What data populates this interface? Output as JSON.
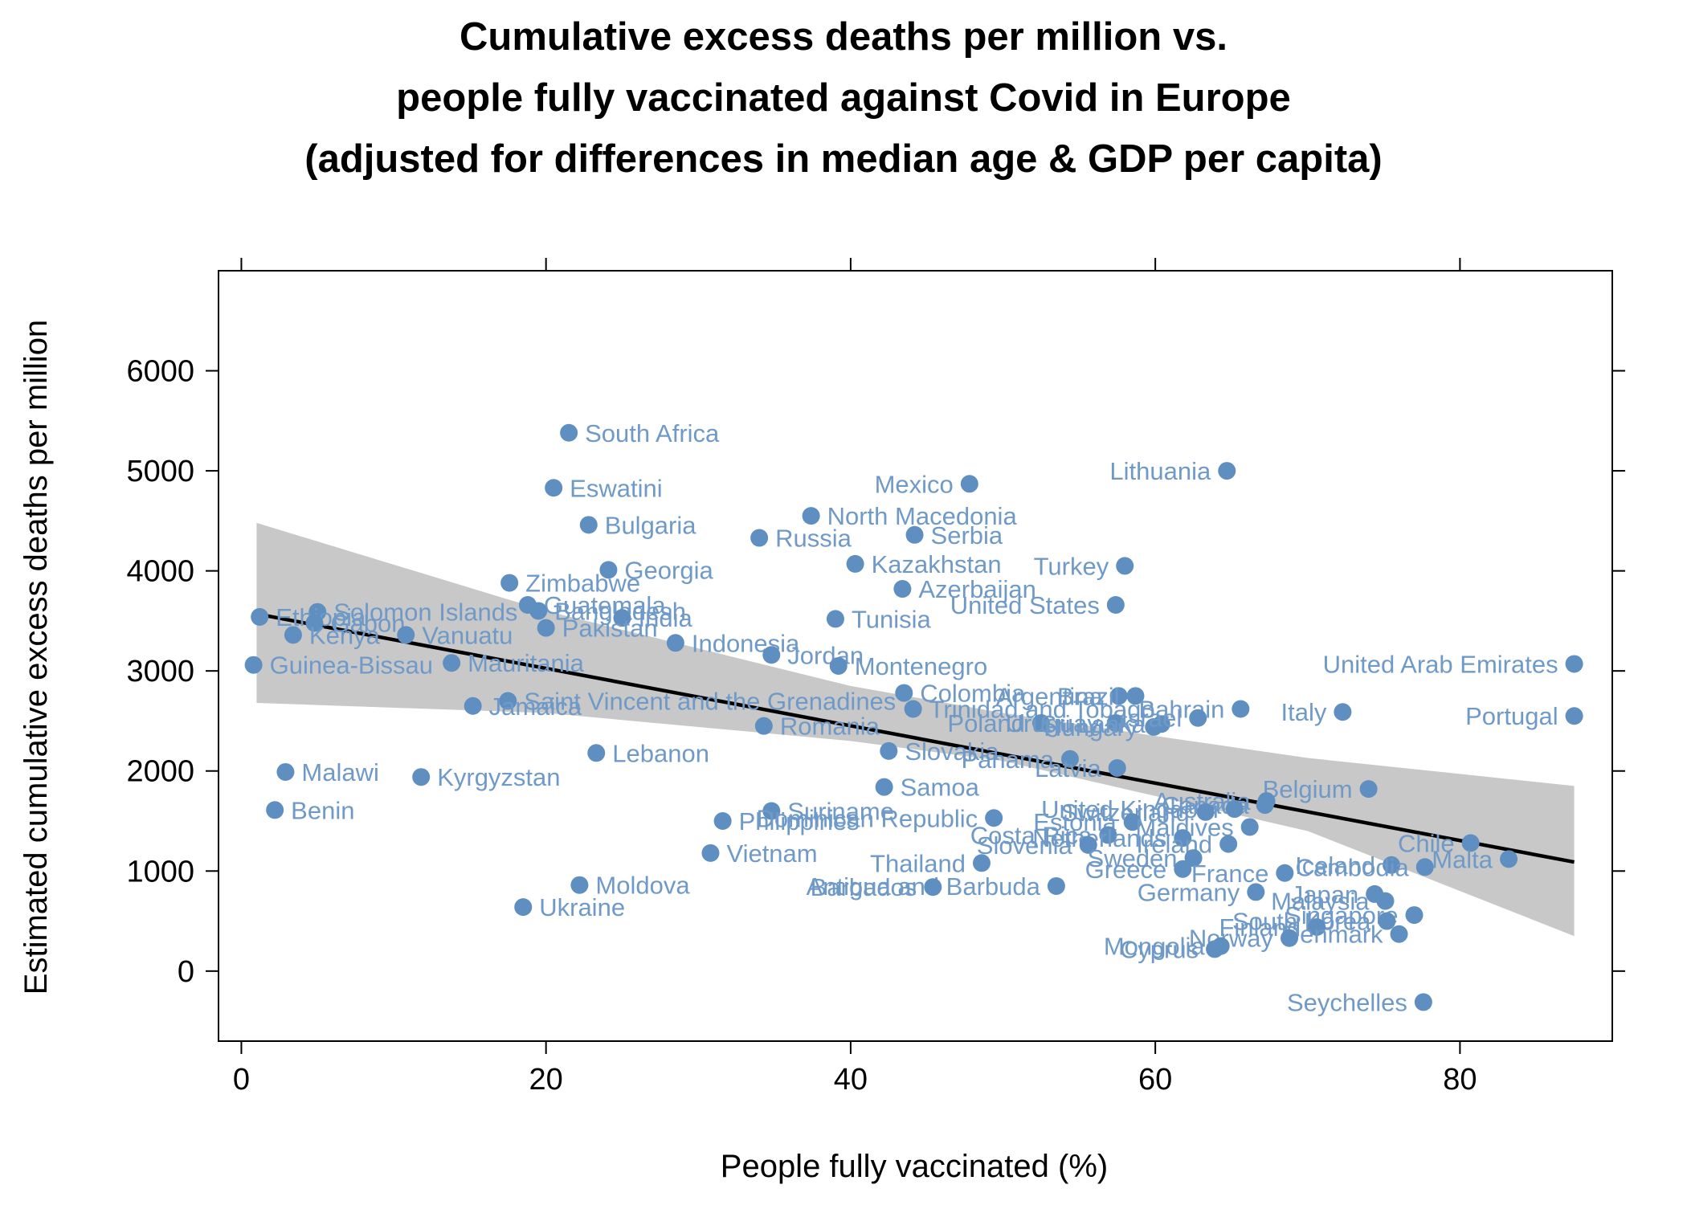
{
  "colors": {
    "point": "#5f8fc0",
    "label": "#6f9ac8",
    "band": "#c8c8c8",
    "trend": "#000000",
    "frame": "#000000"
  },
  "chart_data": {
    "type": "scatter",
    "title": [
      "Cumulative excess deaths per million vs.",
      "people fully vaccinated against Covid in Europe",
      "(adjusted for differences in median age & GDP per capita)"
    ],
    "xlabel": "People fully vaccinated (%)",
    "ylabel": "Estimated cumulative excess deaths per million",
    "xlim": [
      -1.5,
      90
    ],
    "ylim": [
      -700,
      7000
    ],
    "xticks": [
      0,
      20,
      40,
      60,
      80
    ],
    "yticks": [
      0,
      1000,
      2000,
      3000,
      4000,
      5000,
      6000
    ],
    "grid": false,
    "trend_line": {
      "x0": 1,
      "y0": 3570,
      "x1": 87.5,
      "y1": 1090
    },
    "confidence_band": {
      "x": [
        1,
        20,
        40,
        50,
        60,
        70,
        87.5
      ],
      "upper": [
        4480,
        3600,
        2850,
        2580,
        2350,
        2130,
        1850
      ],
      "lower": [
        2680,
        2580,
        2300,
        2100,
        1750,
        1400,
        350
      ]
    },
    "points": [
      {
        "label": "South Africa",
        "x": 21.5,
        "y": 5380,
        "side": "right"
      },
      {
        "label": "Eswatini",
        "x": 20.5,
        "y": 4830,
        "side": "right"
      },
      {
        "label": "Bulgaria",
        "x": 22.8,
        "y": 4460,
        "side": "right"
      },
      {
        "label": "Georgia",
        "x": 24.1,
        "y": 4010,
        "side": "right"
      },
      {
        "label": "Zimbabwe",
        "x": 17.6,
        "y": 3880,
        "side": "right"
      },
      {
        "label": "Solomon Islands",
        "x": 5,
        "y": 3590,
        "side": "right"
      },
      {
        "label": "Guatemala",
        "x": 18.8,
        "y": 3660,
        "side": "right"
      },
      {
        "label": "Bangladesh",
        "x": 19.5,
        "y": 3600,
        "side": "right"
      },
      {
        "label": "India",
        "x": 25,
        "y": 3530,
        "side": "right"
      },
      {
        "label": "Ethiopia",
        "x": 1.2,
        "y": 3540,
        "side": "right"
      },
      {
        "label": "Gabon",
        "x": 4.8,
        "y": 3480,
        "side": "right"
      },
      {
        "label": "Pakistan",
        "x": 20,
        "y": 3430,
        "side": "right"
      },
      {
        "label": "Kenya",
        "x": 3.4,
        "y": 3360,
        "side": "right"
      },
      {
        "label": "Vanuatu",
        "x": 10.8,
        "y": 3360,
        "side": "right"
      },
      {
        "label": "Indonesia",
        "x": 28.5,
        "y": 3280,
        "side": "right"
      },
      {
        "label": "Jordan",
        "x": 34.8,
        "y": 3160,
        "side": "right"
      },
      {
        "label": "Guinea-Bissau",
        "x": 0.8,
        "y": 3060,
        "side": "right"
      },
      {
        "label": "Mauritania",
        "x": 13.8,
        "y": 3080,
        "side": "right"
      },
      {
        "label": "Montenegro",
        "x": 39.2,
        "y": 3050,
        "side": "right"
      },
      {
        "label": "Saint Vincent and the Grenadines",
        "x": 17.5,
        "y": 2700,
        "side": "right"
      },
      {
        "label": "Jamaica",
        "x": 15.2,
        "y": 2650,
        "side": "right"
      },
      {
        "label": "Romania",
        "x": 34.3,
        "y": 2450,
        "side": "right"
      },
      {
        "label": "Lebanon",
        "x": 23.3,
        "y": 2180,
        "side": "right"
      },
      {
        "label": "Malawi",
        "x": 2.9,
        "y": 1990,
        "side": "right"
      },
      {
        "label": "Kyrgyzstan",
        "x": 11.8,
        "y": 1940,
        "side": "right"
      },
      {
        "label": "Benin",
        "x": 2.2,
        "y": 1610,
        "side": "right"
      },
      {
        "label": "Mexico",
        "x": 47.8,
        "y": 4870,
        "side": "left"
      },
      {
        "label": "North Macedonia",
        "x": 37.4,
        "y": 4550,
        "side": "right"
      },
      {
        "label": "Russia",
        "x": 34,
        "y": 4330,
        "side": "right"
      },
      {
        "label": "Serbia",
        "x": 44.2,
        "y": 4360,
        "side": "right"
      },
      {
        "label": "Kazakhstan",
        "x": 40.3,
        "y": 4070,
        "side": "right"
      },
      {
        "label": "Azerbaijan",
        "x": 43.4,
        "y": 3820,
        "side": "right"
      },
      {
        "label": "Tunisia",
        "x": 39,
        "y": 3520,
        "side": "right"
      },
      {
        "label": "Lithuania",
        "x": 64.7,
        "y": 5000,
        "side": "left"
      },
      {
        "label": "Turkey",
        "x": 58,
        "y": 4050,
        "side": "left"
      },
      {
        "label": "United States",
        "x": 57.4,
        "y": 3660,
        "side": "left"
      },
      {
        "label": "United Arab Emirates",
        "x": 87.5,
        "y": 3070,
        "side": "left"
      },
      {
        "label": "Portugal",
        "x": 87.5,
        "y": 2550,
        "side": "left"
      },
      {
        "label": "Italy",
        "x": 72.3,
        "y": 2590,
        "side": "left"
      },
      {
        "label": "Colombia",
        "x": 43.5,
        "y": 2780,
        "side": "right"
      },
      {
        "label": "Trinidad and Tobago",
        "x": 44.1,
        "y": 2620,
        "side": "right"
      },
      {
        "label": "Argentina",
        "x": 57.6,
        "y": 2750,
        "side": "left"
      },
      {
        "label": "Brazil",
        "x": 58.7,
        "y": 2750,
        "side": "left"
      },
      {
        "label": "Bahrain",
        "x": 65.6,
        "y": 2620,
        "side": "left"
      },
      {
        "label": "Poland",
        "x": 52.5,
        "y": 2480,
        "side": "left"
      },
      {
        "label": "Uruguay",
        "x": 57.4,
        "y": 2480,
        "side": "left"
      },
      {
        "label": "Sri Lanka",
        "x": 60.4,
        "y": 2470,
        "side": "left"
      },
      {
        "label": "Hungary",
        "x": 59.9,
        "y": 2440,
        "side": "left"
      },
      {
        "label": "Israel",
        "x": 62.8,
        "y": 2530,
        "side": "left"
      },
      {
        "label": "Slovakia",
        "x": 42.5,
        "y": 2200,
        "side": "right"
      },
      {
        "label": "Panama",
        "x": 54.4,
        "y": 2120,
        "side": "left"
      },
      {
        "label": "Latvia",
        "x": 57.5,
        "y": 2030,
        "side": "left"
      },
      {
        "label": "Samoa",
        "x": 42.2,
        "y": 1840,
        "side": "right"
      },
      {
        "label": "Suriname",
        "x": 34.8,
        "y": 1600,
        "side": "right"
      },
      {
        "label": "Dominican Republic",
        "x": 49.4,
        "y": 1530,
        "side": "left"
      },
      {
        "label": "Philippines",
        "x": 31.6,
        "y": 1500,
        "side": "right"
      },
      {
        "label": "Belgium",
        "x": 74,
        "y": 1820,
        "side": "left"
      },
      {
        "label": "Australia",
        "x": 67.3,
        "y": 1700,
        "side": "left"
      },
      {
        "label": "Canada",
        "x": 67.2,
        "y": 1660,
        "side": "left"
      },
      {
        "label": "United Kingdom",
        "x": 65.2,
        "y": 1620,
        "side": "left"
      },
      {
        "label": "Switzerland",
        "x": 63.3,
        "y": 1590,
        "side": "left"
      },
      {
        "label": "Estonia",
        "x": 58.5,
        "y": 1490,
        "side": "left"
      },
      {
        "label": "Maldives",
        "x": 66.2,
        "y": 1440,
        "side": "left"
      },
      {
        "label": "Costa Rica",
        "x": 56.9,
        "y": 1360,
        "side": "left"
      },
      {
        "label": "Netherlands",
        "x": 61.8,
        "y": 1330,
        "side": "left"
      },
      {
        "label": "Slovenia",
        "x": 55.6,
        "y": 1260,
        "side": "left"
      },
      {
        "label": "Ireland",
        "x": 64.8,
        "y": 1270,
        "side": "left"
      },
      {
        "label": "Vietnam",
        "x": 30.8,
        "y": 1180,
        "side": "right"
      },
      {
        "label": "Thailand",
        "x": 48.6,
        "y": 1080,
        "side": "left"
      },
      {
        "label": "Sweden",
        "x": 62.5,
        "y": 1130,
        "side": "left"
      },
      {
        "label": "Greece",
        "x": 61.8,
        "y": 1020,
        "side": "left"
      },
      {
        "label": "France",
        "x": 68.5,
        "y": 980,
        "side": "left"
      },
      {
        "label": "Chile",
        "x": 80.7,
        "y": 1280,
        "side": "left"
      },
      {
        "label": "Malta",
        "x": 83.2,
        "y": 1120,
        "side": "left"
      },
      {
        "label": "Iceland",
        "x": 75.5,
        "y": 1060,
        "side": "left"
      },
      {
        "label": "Cambodia",
        "x": 77.7,
        "y": 1040,
        "side": "left"
      },
      {
        "label": "Moldova",
        "x": 22.2,
        "y": 860,
        "side": "right"
      },
      {
        "label": "Antigua and Barbuda",
        "x": 53.5,
        "y": 850,
        "side": "left"
      },
      {
        "label": "Barbados",
        "x": 45.4,
        "y": 840,
        "side": "left"
      },
      {
        "label": "Germany",
        "x": 66.6,
        "y": 790,
        "side": "left"
      },
      {
        "label": "Japan",
        "x": 74.4,
        "y": 770,
        "side": "left"
      },
      {
        "label": "Malaysia",
        "x": 75.1,
        "y": 700,
        "side": "left"
      },
      {
        "label": "Ukraine",
        "x": 18.5,
        "y": 640,
        "side": "right"
      },
      {
        "label": "Singapore",
        "x": 77,
        "y": 560,
        "side": "left"
      },
      {
        "label": "South Korea",
        "x": 75.2,
        "y": 500,
        "side": "left"
      },
      {
        "label": "Finland",
        "x": 70.6,
        "y": 440,
        "side": "left"
      },
      {
        "label": "Denmark",
        "x": 76,
        "y": 370,
        "side": "left"
      },
      {
        "label": "Norway",
        "x": 68.8,
        "y": 330,
        "side": "left"
      },
      {
        "label": "Mongolia",
        "x": 64.3,
        "y": 250,
        "side": "left"
      },
      {
        "label": "Cyprus",
        "x": 63.9,
        "y": 220,
        "side": "left"
      },
      {
        "label": "Seychelles",
        "x": 77.6,
        "y": -310,
        "side": "left"
      }
    ]
  }
}
